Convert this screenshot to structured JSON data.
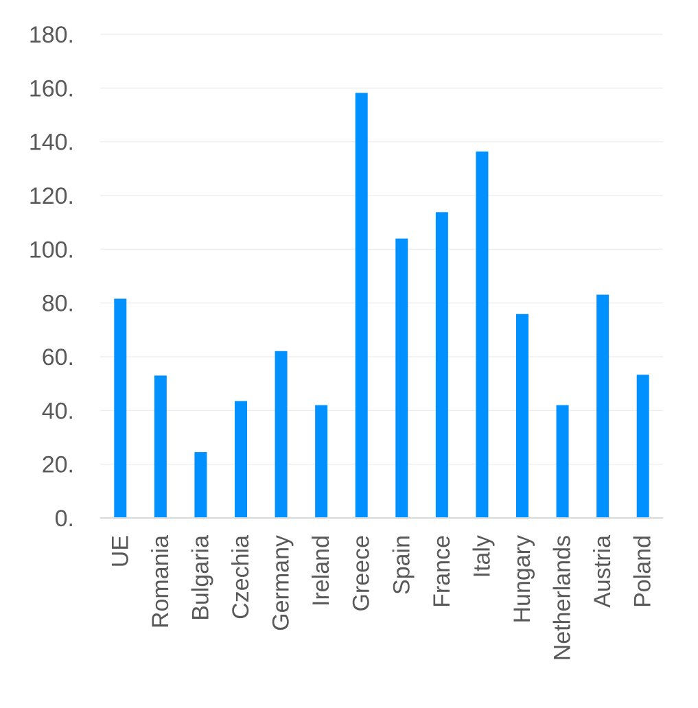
{
  "chart_data": {
    "type": "bar",
    "title": "",
    "xlabel": "",
    "ylabel": "",
    "categories": [
      "UE",
      "Romania",
      "Bulgaria",
      "Czechia",
      "Germany",
      "Ireland",
      "Greece",
      "Spain",
      "France",
      "Italy",
      "Hungary",
      "Netherlands",
      "Austria",
      "Poland"
    ],
    "values": [
      81.6,
      53.0,
      24.5,
      43.5,
      62.1,
      42.0,
      158.2,
      104.0,
      113.8,
      136.4,
      75.9,
      42.0,
      83.1,
      53.3
    ],
    "ylim": [
      0,
      180
    ],
    "yticks": [
      0,
      20,
      40,
      60,
      80,
      100,
      120,
      140,
      160,
      180
    ],
    "ytick_labels": [
      "0.",
      "20.",
      "40.",
      "60.",
      "80.",
      "100.",
      "120.",
      "140.",
      "160.",
      "180."
    ],
    "grid": true,
    "legend": "none",
    "bar_color": "#0090ff",
    "grid_color": "#efefef",
    "axis_color": "#d9d9d9",
    "text_color": "#595959"
  }
}
